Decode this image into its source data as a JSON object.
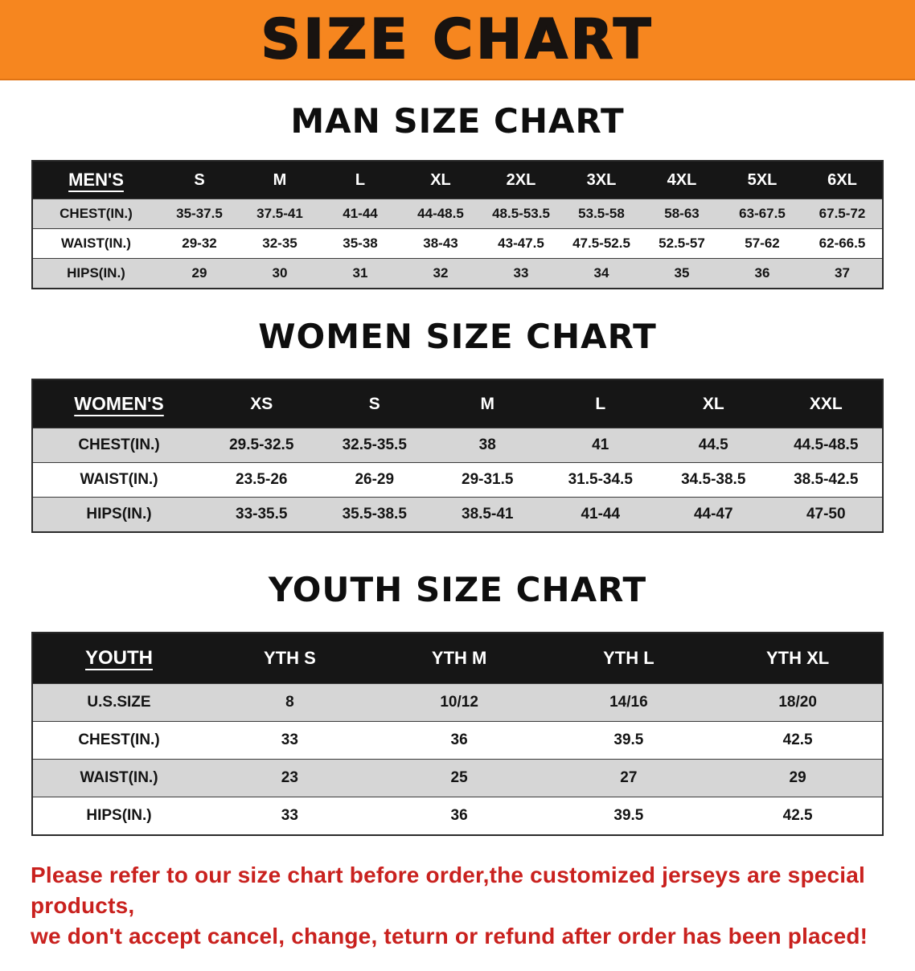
{
  "banner": {
    "title": "SIZE CHART"
  },
  "colors": {
    "banner_bg": "#f6861f",
    "header_bar_bg": "#161616",
    "row_stripe": "#d6d6d6",
    "disclaimer_text": "#c9211e"
  },
  "sections": [
    {
      "id": "men",
      "heading": "MAN SIZE CHART",
      "table": {
        "header": [
          "MEN'S",
          "S",
          "M",
          "L",
          "XL",
          "2XL",
          "3XL",
          "4XL",
          "5XL",
          "6XL"
        ],
        "rows": [
          [
            "CHEST(IN.)",
            "35-37.5",
            "37.5-41",
            "41-44",
            "44-48.5",
            "48.5-53.5",
            "53.5-58",
            "58-63",
            "63-67.5",
            "67.5-72"
          ],
          [
            "WAIST(IN.)",
            "29-32",
            "32-35",
            "35-38",
            "38-43",
            "43-47.5",
            "47.5-52.5",
            "52.5-57",
            "57-62",
            "62-66.5"
          ],
          [
            "HIPS(IN.)",
            "29",
            "30",
            "31",
            "32",
            "33",
            "34",
            "35",
            "36",
            "37"
          ]
        ]
      }
    },
    {
      "id": "women",
      "heading": "WOMEN SIZE CHART",
      "table": {
        "header": [
          "WOMEN'S",
          "XS",
          "S",
          "M",
          "L",
          "XL",
          "XXL"
        ],
        "rows": [
          [
            "CHEST(IN.)",
            "29.5-32.5",
            "32.5-35.5",
            "38",
            "41",
            "44.5",
            "44.5-48.5"
          ],
          [
            "WAIST(IN.)",
            "23.5-26",
            "26-29",
            "29-31.5",
            "31.5-34.5",
            "34.5-38.5",
            "38.5-42.5"
          ],
          [
            "HIPS(IN.)",
            "33-35.5",
            "35.5-38.5",
            "38.5-41",
            "41-44",
            "44-47",
            "47-50"
          ]
        ]
      }
    },
    {
      "id": "youth",
      "heading": "YOUTH SIZE CHART",
      "table": {
        "header": [
          "YOUTH",
          "YTH S",
          "YTH M",
          "YTH L",
          "YTH XL"
        ],
        "rows": [
          [
            "U.S.SIZE",
            "8",
            "10/12",
            "14/16",
            "18/20"
          ],
          [
            "CHEST(IN.)",
            "33",
            "36",
            "39.5",
            "42.5"
          ],
          [
            "WAIST(IN.)",
            "23",
            "25",
            "27",
            "29"
          ],
          [
            "HIPS(IN.)",
            "33",
            "36",
            "39.5",
            "42.5"
          ]
        ]
      }
    }
  ],
  "disclaimer": {
    "line1": "Please refer to our size chart before order,the customized jerseys are special products,",
    "line2": "we don't accept cancel, change, teturn or refund after order has been placed!"
  }
}
